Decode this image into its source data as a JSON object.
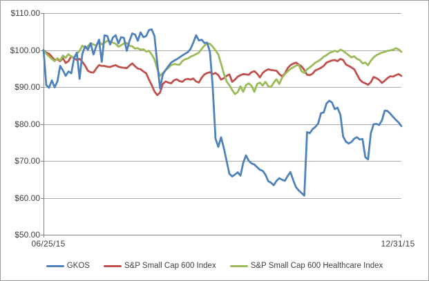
{
  "chart_data": {
    "type": "line",
    "title": "",
    "grid": true,
    "legend_position": "bottom",
    "x_axis": {
      "start_label": "06/25/15",
      "end_label": "12/31/15"
    },
    "y_axis": {
      "ylim": [
        50,
        110
      ],
      "tick_values": [
        110,
        100,
        90,
        80,
        70,
        60,
        50
      ],
      "tick_labels": [
        "$110.00",
        "$100.00",
        "$90.00",
        "$80.00",
        "$70.00",
        "$60.00",
        "$50.00"
      ]
    },
    "series": [
      {
        "name": "GKOS",
        "color": "#4F81BD",
        "values": [
          100.0,
          90.5,
          89.8,
          91.8,
          89.9,
          91.5,
          95.7,
          94.5,
          93.0,
          94.2,
          93.7,
          97.8,
          99.3,
          92.2,
          99.0,
          101.0,
          100.1,
          101.8,
          98.8,
          101.0,
          102.8,
          96.8,
          104.0,
          103.8,
          101.5,
          103.4,
          104.0,
          101.8,
          103.5,
          103.3,
          99.8,
          102.5,
          104.5,
          104.2,
          102.5,
          104.8,
          103.5,
          103.8,
          105.4,
          105.6,
          103.8,
          96.5,
          89.6,
          93.4,
          94.6,
          95.6,
          96.6,
          97.1,
          97.5,
          98.0,
          98.5,
          99.0,
          99.4,
          100.3,
          102.0,
          104.0,
          102.6,
          102.8,
          101.9,
          102.0,
          99.5,
          90.0,
          76.0,
          73.8,
          76.4,
          73.5,
          70.0,
          66.5,
          65.8,
          66.3,
          66.9,
          66.0,
          69.5,
          71.5,
          70.0,
          69.3,
          69.0,
          68.3,
          67.6,
          67.3,
          66.3,
          64.5,
          64.1,
          63.4,
          64.6,
          65.3,
          64.9,
          64.6,
          65.9,
          67.0,
          64.8,
          62.9,
          62.0,
          61.3,
          60.6,
          77.8,
          77.5,
          78.6,
          79.2,
          80.1,
          82.9,
          83.1,
          85.5,
          86.3,
          85.8,
          84.0,
          84.4,
          82.5,
          76.6,
          75.2,
          74.7,
          75.1,
          76.0,
          76.4,
          75.8,
          75.9,
          71.0,
          70.4,
          77.5,
          79.9,
          80.0,
          79.7,
          81.0,
          83.6,
          83.5,
          82.8,
          81.9,
          81.1,
          80.4,
          79.4
        ]
      },
      {
        "name": "S&P Small Cap 600 Index",
        "color": "#C0504D",
        "values": [
          100.0,
          99.3,
          99.0,
          98.2,
          97.3,
          97.5,
          97.0,
          97.8,
          96.5,
          97.0,
          98.3,
          97.8,
          97.3,
          97.6,
          96.8,
          95.8,
          94.4,
          94.0,
          93.9,
          95.0,
          95.9,
          95.7,
          95.7,
          95.5,
          95.4,
          95.7,
          95.9,
          95.5,
          95.3,
          95.2,
          95.1,
          95.8,
          96.4,
          95.6,
          95.0,
          94.8,
          94.2,
          93.7,
          92.0,
          90.5,
          88.8,
          87.8,
          88.5,
          90.8,
          91.5,
          91.2,
          91.0,
          91.8,
          92.1,
          91.6,
          91.4,
          92.0,
          92.2,
          92.0,
          92.3,
          91.5,
          91.2,
          92.5,
          93.4,
          93.8,
          94.0,
          93.5,
          93.8,
          93.2,
          92.0,
          92.4,
          93.0,
          93.4,
          91.4,
          92.0,
          92.8,
          93.2,
          93.5,
          93.4,
          93.3,
          94.0,
          94.3,
          93.6,
          92.6,
          93.8,
          94.4,
          94.8,
          94.6,
          94.5,
          94.4,
          93.5,
          92.9,
          93.6,
          95.1,
          95.9,
          96.3,
          96.6,
          96.1,
          95.6,
          94.6,
          93.3,
          93.2,
          93.6,
          94.5,
          94.8,
          95.2,
          95.7,
          96.6,
          96.9,
          97.2,
          97.3,
          97.0,
          97.6,
          97.3,
          96.1,
          95.7,
          95.3,
          94.8,
          93.4,
          92.0,
          91.3,
          91.0,
          90.6,
          91.3,
          92.7,
          92.4,
          91.9,
          91.1,
          91.7,
          92.4,
          92.9,
          92.8,
          93.2,
          93.5,
          93.0
        ]
      },
      {
        "name": "S&P Small Cap 600 Healthcare Index",
        "color": "#9BBB59",
        "values": [
          100.0,
          99.0,
          98.3,
          97.6,
          97.0,
          97.8,
          97.2,
          98.5,
          97.9,
          98.9,
          98.2,
          98.0,
          99.0,
          99.8,
          101.2,
          100.6,
          101.0,
          101.9,
          101.5,
          101.2,
          102.4,
          101.5,
          102.0,
          102.5,
          102.3,
          102.0,
          101.7,
          100.9,
          101.3,
          101.8,
          101.9,
          101.2,
          101.0,
          100.4,
          100.5,
          100.1,
          100.2,
          99.6,
          99.8,
          98.8,
          97.5,
          95.0,
          93.0,
          93.8,
          94.6,
          95.2,
          95.9,
          96.2,
          96.1,
          96.0,
          97.0,
          97.5,
          97.7,
          98.2,
          98.5,
          98.9,
          99.3,
          100.3,
          101.2,
          101.8,
          101.7,
          100.9,
          99.9,
          98.8,
          96.3,
          93.6,
          91.5,
          90.5,
          89.2,
          88.1,
          88.6,
          90.2,
          88.7,
          90.5,
          91.0,
          90.3,
          88.7,
          90.8,
          91.2,
          90.4,
          91.4,
          90.2,
          90.0,
          91.2,
          92.1,
          90.8,
          92.5,
          93.5,
          94.2,
          94.9,
          95.3,
          95.8,
          96.0,
          94.3,
          93.8,
          94.8,
          95.3,
          95.9,
          96.6,
          97.0,
          97.5,
          98.2,
          98.6,
          99.2,
          99.5,
          99.8,
          99.5,
          100.1,
          99.8,
          99.2,
          98.6,
          98.0,
          98.3,
          97.6,
          97.3,
          96.4,
          96.6,
          95.9,
          97.1,
          98.0,
          98.6,
          99.0,
          99.3,
          99.5,
          99.8,
          99.9,
          100.1,
          100.5,
          100.2,
          99.5
        ]
      }
    ]
  }
}
